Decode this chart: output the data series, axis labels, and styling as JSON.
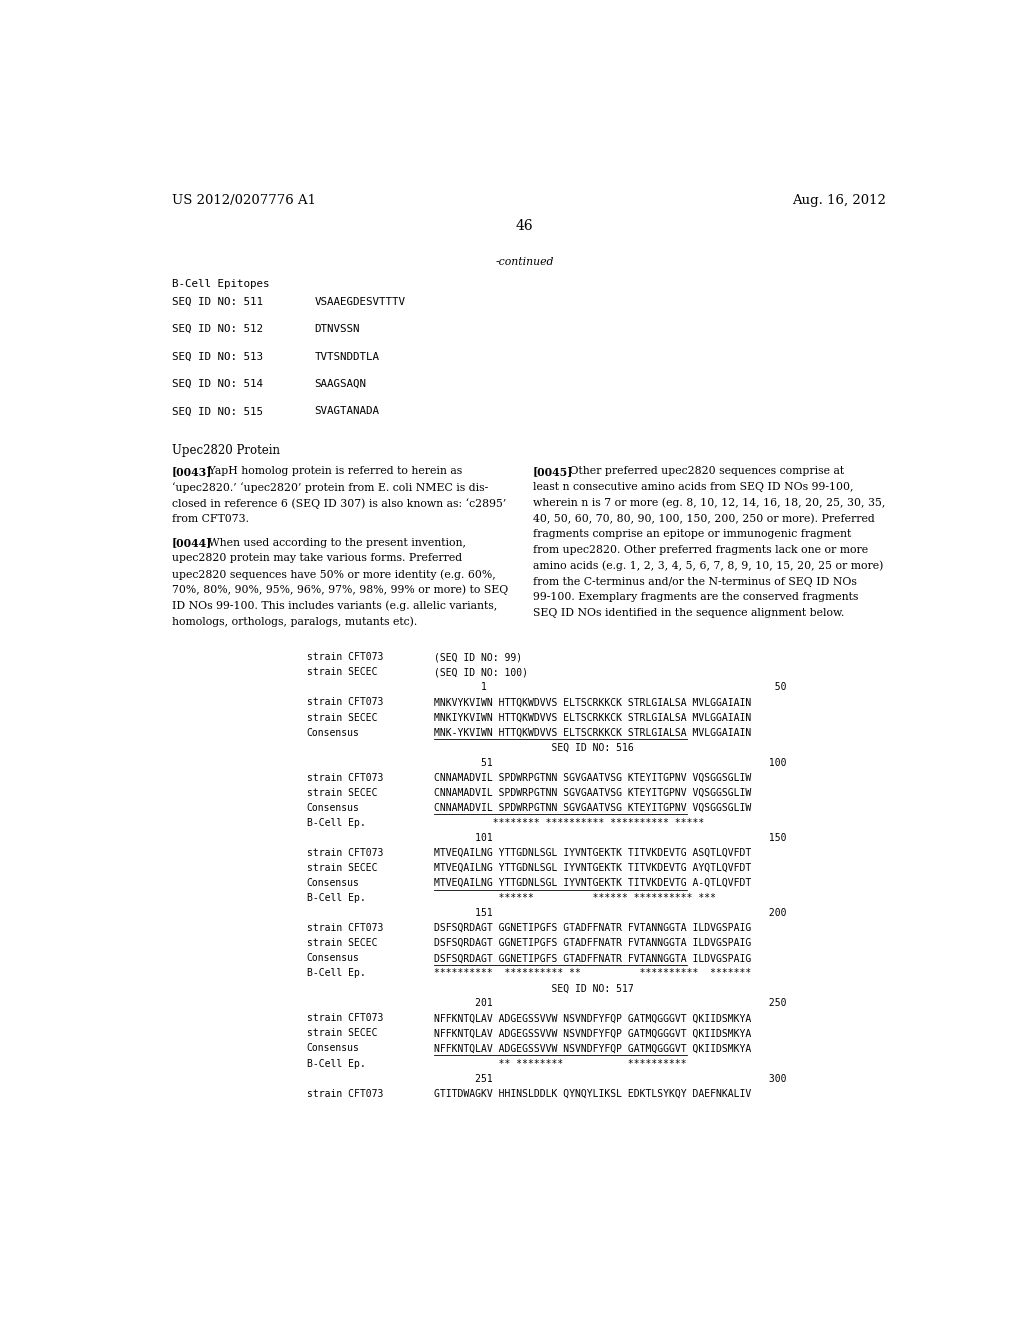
{
  "bg_color": "#ffffff",
  "header_left": "US 2012/0207776 A1",
  "header_right": "Aug. 16, 2012",
  "page_number": "46",
  "continued": "-continued",
  "table_section": "B-Cell Epitopes",
  "table_rows": [
    [
      "SEQ ID NO: 511",
      "VSAAEGDESVTTTV"
    ],
    [
      "SEQ ID NO: 512",
      "DTNVSSN"
    ],
    [
      "SEQ ID NO: 513",
      "TVTSNDDTLA"
    ],
    [
      "SEQ ID NO: 514",
      "SAAGSAQN"
    ],
    [
      "SEQ ID NO: 515",
      "SVAGTANADA"
    ]
  ],
  "section_title": "Upec2820 Protein",
  "left_col": [
    {
      "tag": "[0043]",
      "text": "   YapH homolog protein is referred to herein as\n‘upec2820.’ ‘upec2820’ protein from E. coli NMEC is dis-\nclosed in reference 6 (SEQ ID 307) is also known as: ‘c2895’\nfrom CFT073."
    },
    {
      "tag": "[0044]",
      "text": "   When used according to the present invention,\nupec2820 protein may take various forms. Preferred\nupec2820 sequences have 50% or more identity (e.g. 60%,\n70%, 80%, 90%, 95%, 96%, 97%, 98%, 99% or more) to SEQ\nID NOs 99-100. This includes variants (e.g. allelic variants,\nhomologs, orthologs, paralogs, mutants etc)."
    }
  ],
  "right_col": [
    {
      "tag": "[0045]",
      "text": "   Other preferred upec2820 sequences comprise at\nleast n consecutive amino acids from SEQ ID NOs 99-100,\nwherein n is 7 or more (eg. 8, 10, 12, 14, 16, 18, 20, 25, 30, 35,\n40, 50, 60, 70, 80, 90, 100, 150, 200, 250 or more). Preferred\nfragments comprise an epitope or immunogenic fragment\nfrom upec2820. Other preferred fragments lack one or more\namino acids (e.g. 1, 2, 3, 4, 5, 6, 7, 8, 9, 10, 15, 20, 25 or more)\nfrom the C-terminus and/or the N-terminus of SEQ ID NOs\n99-100. Exemplary fragments are the conserved fragments\nSEQ ID NOs identified in the sequence alignment below."
    }
  ],
  "alignment_lines": [
    {
      "label": "strain CFT073",
      "text": "(SEQ ID NO: 99)",
      "underline": false
    },
    {
      "label": "strain SECEC",
      "text": "(SEQ ID NO: 100)",
      "underline": false
    },
    {
      "label": "",
      "text": "        1                                                 50",
      "underline": false
    },
    {
      "label": "strain CFT073",
      "text": "MNKVYKVIWN HTTQKWDVVS ELTSCRKKCK STRLGIALSA MVLGGAIAIN",
      "underline": false
    },
    {
      "label": "strain SECEC",
      "text": "MNKIYKVIWN HTTQKWDVVS ELTSCRKKCK STRLGIALSA MVLGGAIAIN",
      "underline": false
    },
    {
      "label": "Consensus",
      "text": "MNK-YKVIWN HTTQKWDVVS ELTSCRKKCK STRLGIALSA MVLGGAIAIN",
      "underline": true
    },
    {
      "label": "",
      "text": "                    SEQ ID NO: 516",
      "underline": false
    },
    {
      "label": "",
      "text": "        51                                               100",
      "underline": false
    },
    {
      "label": "strain CFT073",
      "text": "CNNAMADVIL SPDWRPGTNN SGVGAATVSG KTEYITGPNV VQSGGSGLIW",
      "underline": false
    },
    {
      "label": "strain SECEC",
      "text": "CNNAMADVIL SPDWRPGTNN SGVGAATVSG KTEYITGPNV VQSGGSGLIW",
      "underline": false
    },
    {
      "label": "Consensus",
      "text": "CNNAMADVIL SPDWRPGTNN SGVGAATVSG KTEYITGPNV VQSGGSGLIW",
      "underline": true
    },
    {
      "label": "B-Cell Ep.",
      "text": "          ******** ********** ********** *****",
      "underline": false
    },
    {
      "label": "",
      "text": "       101                                               150",
      "underline": false
    },
    {
      "label": "strain CFT073",
      "text": "MTVEQAILNG YTTGDNLSGL IYVNTGEKTK TITVKDEVTG ASQTLQVFDT",
      "underline": false
    },
    {
      "label": "strain SECEC",
      "text": "MTVEQAILNG YTTGDNLSGL IYVNTGEKTK TITVKDEVTG AYQTLQVFDT",
      "underline": false
    },
    {
      "label": "Consensus",
      "text": "MTVEQAILNG YTTGDNLSGL IYVNTGEKTK TITVKDEVTG A-QTLQVFDT",
      "underline": true
    },
    {
      "label": "B-Cell Ep.",
      "text": "           ******          ****** ********** ***",
      "underline": false
    },
    {
      "label": "",
      "text": "       151                                               200",
      "underline": false
    },
    {
      "label": "strain CFT073",
      "text": "DSFSQRDAGT GGNETIPGFS GTADFFNATR FVTANNGGTA ILDVGSPAIG",
      "underline": false
    },
    {
      "label": "strain SECEC",
      "text": "DSFSQRDAGT GGNETIPGFS GTADFFNATR FVTANNGGTA ILDVGSPAIG",
      "underline": false
    },
    {
      "label": "Consensus",
      "text": "DSFSQRDAGT GGNETIPGFS GTADFFNATR FVTANNGGTA ILDVGSPAIG",
      "underline": true
    },
    {
      "label": "B-Cell Ep.",
      "text": "**********  ********** **          **********  *******",
      "underline": false
    },
    {
      "label": "",
      "text": "                    SEQ ID NO: 517",
      "underline": false
    },
    {
      "label": "",
      "text": "       201                                               250",
      "underline": false
    },
    {
      "label": "strain CFT073",
      "text": "NFFKNTQLAV ADGEGSSVVW NSVNDFYFQP GATMQGGGVT QKIIDSMKYA",
      "underline": false
    },
    {
      "label": "strain SECEC",
      "text": "NFFKNTQLAV ADGEGSSVVW NSVNDFYFQP GATMQGGGVT QKIIDSMKYA",
      "underline": false
    },
    {
      "label": "Consensus",
      "text": "NFFKNTQLAV ADGEGSSVVW NSVNDFYFQP GATMQGGGVT QKIIDSMKYA",
      "underline": true
    },
    {
      "label": "B-Cell Ep.",
      "text": "           ** ********           **********",
      "underline": false
    },
    {
      "label": "",
      "text": "       251                                               300",
      "underline": false
    },
    {
      "label": "strain CFT073",
      "text": "GTITDWAGKV HHINSLDDLK QYNQYLIKSL EDKTLSYKQY DAEFNKALIV",
      "underline": false
    }
  ]
}
